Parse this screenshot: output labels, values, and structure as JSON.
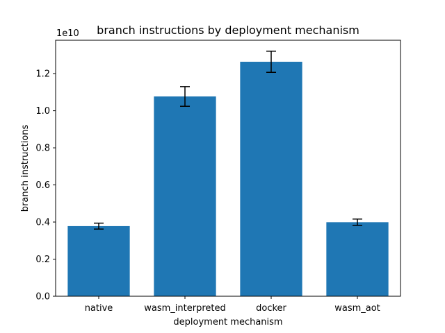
{
  "chart_data": {
    "type": "bar",
    "title": "branch instructions by deployment mechanism",
    "xlabel": "deployment mechanism",
    "ylabel": "branch instructions",
    "offset_label": "1e10",
    "categories": [
      "native",
      "wasm_interpreted",
      "docker",
      "wasm_aot"
    ],
    "values": [
      3.78,
      10.77,
      12.64,
      3.99
    ],
    "errors": [
      0.16,
      0.53,
      0.57,
      0.17
    ],
    "value_scale": 10000000000,
    "ylim": [
      0,
      13.8
    ],
    "yticks": [
      0.0,
      0.2,
      0.4,
      0.6,
      0.8,
      1.0,
      1.2
    ],
    "ytick_labels": [
      "0.0",
      "0.2",
      "0.4",
      "0.6",
      "0.8",
      "1.0",
      "1.2"
    ],
    "bar_color": "#1f77b4",
    "error_color": "#000000",
    "grid": false,
    "legend": false
  }
}
